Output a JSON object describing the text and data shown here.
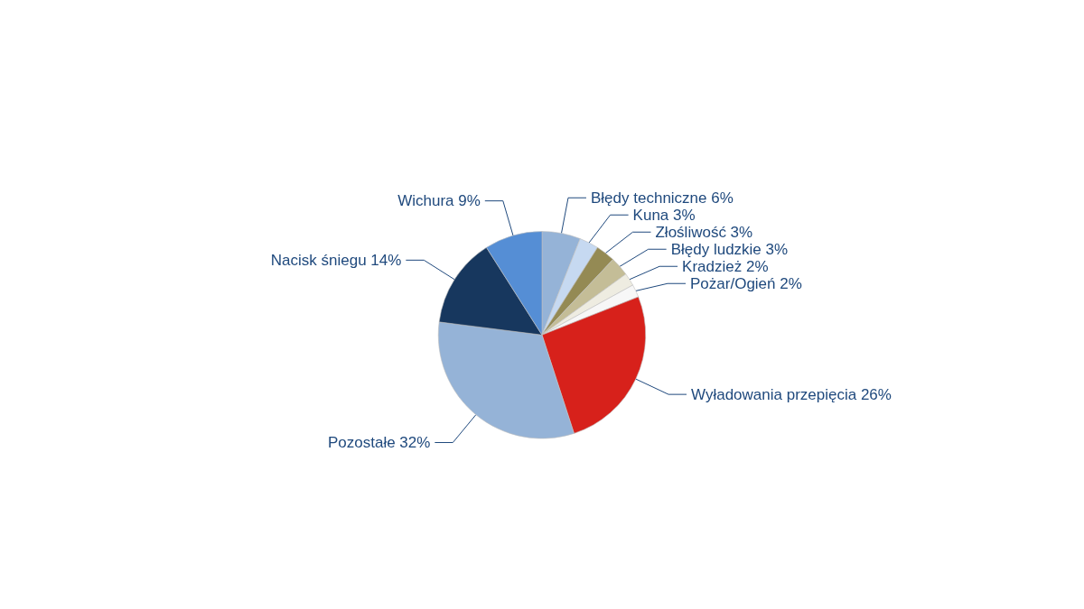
{
  "chart_data": {
    "type": "pie",
    "categories": [
      "Błędy techniczne",
      "Kuna",
      "Złośliwość",
      "Błędy ludzkie",
      "Kradzież",
      "Pożar/Ogień",
      "Wyładowania przepięcia",
      "Pozostałe",
      "Nacisk śniegu",
      "Wichura"
    ],
    "values": [
      6,
      3,
      3,
      3,
      2,
      2,
      26,
      32,
      14,
      9
    ],
    "value_labels": [
      "6%",
      "3%",
      "3%",
      "3%",
      "2%",
      "2%",
      "26%",
      "32%",
      "14%",
      "9%"
    ],
    "colors": [
      "#95b3d7",
      "#c6d9f1",
      "#948a54",
      "#c4bd97",
      "#eeece1",
      "#f7f7f7",
      "#d7211b",
      "#95b3d7",
      "#17375e",
      "#558ed5"
    ],
    "legend": false
  }
}
